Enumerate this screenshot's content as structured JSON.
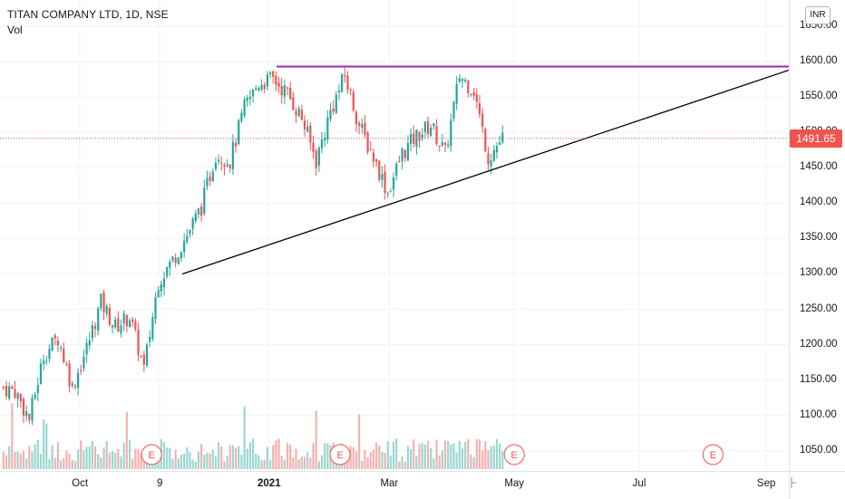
{
  "header": {
    "title": "TITAN COMPANY LTD, 1D, NSE",
    "indicator": "Vol"
  },
  "price_axis": {
    "currency": "INR",
    "last_price": "1491.65"
  },
  "colors": {
    "up": "#26a69a",
    "down": "#ef5350",
    "resistance": "#9c27b0",
    "trendline": "#000000",
    "grid": "#f0f3fa"
  },
  "chart_data": {
    "type": "candlestick",
    "title": "TITAN COMPANY LTD, 1D, NSE",
    "y_ticks": [
      1050,
      1100,
      1150,
      1200,
      1250,
      1300,
      1350,
      1400,
      1450,
      1500,
      1550,
      1600,
      1650
    ],
    "y_tick_labels": [
      "1050.00",
      "1100.00",
      "1150.00",
      "1200.00",
      "1250.00",
      "1300.00",
      "1350.00",
      "1400.00",
      "1450.00",
      "1500.00",
      "1550.00",
      "1600.00",
      "1650.00"
    ],
    "ylim": [
      1025,
      1665
    ],
    "x_ticks": [
      {
        "label": "Oct",
        "date": "2020-10-01"
      },
      {
        "label": "9",
        "date": "2020-11-09"
      },
      {
        "label": "2021",
        "date": "2021-01-01"
      },
      {
        "label": "Mar",
        "date": "2021-03-01"
      },
      {
        "label": "May",
        "date": "2021-05-01"
      },
      {
        "label": "Jul",
        "date": "2021-07-01"
      },
      {
        "label": "Sep",
        "date": "2021-09-01"
      }
    ],
    "xlim": [
      "2020-08-23",
      "2021-09-12"
    ],
    "last_price": 1491.65,
    "candles": [
      {
        "date": "2020-08-24",
        "c": 1140
      },
      {
        "date": "2020-08-31",
        "c": 1135
      },
      {
        "date": "2020-09-07",
        "c": 1095
      },
      {
        "date": "2020-09-14",
        "c": 1185
      },
      {
        "date": "2020-09-21",
        "c": 1210
      },
      {
        "date": "2020-09-28",
        "c": 1140
      },
      {
        "date": "2020-10-05",
        "c": 1195
      },
      {
        "date": "2020-10-12",
        "c": 1260
      },
      {
        "date": "2020-10-19",
        "c": 1225
      },
      {
        "date": "2020-10-26",
        "c": 1240
      },
      {
        "date": "2020-11-02",
        "c": 1165
      },
      {
        "date": "2020-11-09",
        "c": 1290
      },
      {
        "date": "2020-11-16",
        "c": 1320
      },
      {
        "date": "2020-11-23",
        "c": 1355
      },
      {
        "date": "2020-11-30",
        "c": 1395
      },
      {
        "date": "2020-12-07",
        "c": 1470
      },
      {
        "date": "2020-12-14",
        "c": 1460
      },
      {
        "date": "2020-12-21",
        "c": 1535
      },
      {
        "date": "2020-12-28",
        "c": 1570
      },
      {
        "date": "2021-01-04",
        "c": 1575
      },
      {
        "date": "2021-01-11",
        "c": 1555
      },
      {
        "date": "2021-01-18",
        "c": 1520
      },
      {
        "date": "2021-01-25",
        "c": 1460
      },
      {
        "date": "2021-02-01",
        "c": 1530
      },
      {
        "date": "2021-02-08",
        "c": 1580
      },
      {
        "date": "2021-02-15",
        "c": 1510
      },
      {
        "date": "2021-02-22",
        "c": 1465
      },
      {
        "date": "2021-03-01",
        "c": 1415
      },
      {
        "date": "2021-03-08",
        "c": 1470
      },
      {
        "date": "2021-03-15",
        "c": 1495
      },
      {
        "date": "2021-03-22",
        "c": 1510
      },
      {
        "date": "2021-03-29",
        "c": 1470
      },
      {
        "date": "2021-04-05",
        "c": 1580
      },
      {
        "date": "2021-04-12",
        "c": 1560
      },
      {
        "date": "2021-04-19",
        "c": 1465
      },
      {
        "date": "2021-04-26",
        "c": 1491.65
      }
    ],
    "lines": [
      {
        "name": "",
        "kind": "horizontal",
        "y": 1593,
        "x_start": "2021-01-05",
        "x_end": "2021-09-12"
      },
      {
        "name": "",
        "kind": "trend",
        "start": {
          "date": "2020-11-20",
          "y": 1300
        },
        "end": {
          "date": "2021-09-12",
          "y": 1588
        }
      }
    ],
    "earnings_markers": [
      {
        "label": "E",
        "date": "2020-11-05"
      },
      {
        "label": "E",
        "date": "2021-02-05"
      },
      {
        "label": "E",
        "date": "2021-05-01"
      },
      {
        "label": "E",
        "date": "2021-08-06"
      }
    ]
  }
}
